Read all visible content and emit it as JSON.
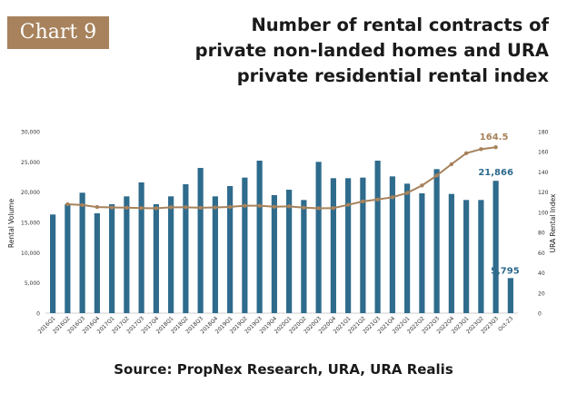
{
  "badge": "Chart 9",
  "title_lines": [
    "Number of rental contracts of",
    "private non-landed homes and URA",
    "private residential rental index"
  ],
  "source": "Source: PropNex Research, URA, URA Realis",
  "colors": {
    "bar": "#2e6b8c",
    "line": "#a7825c",
    "badge": "#a7825c"
  },
  "chart_data": {
    "type": "bar",
    "categories": [
      "2016Q1",
      "2016Q2",
      "2016Q3",
      "2016Q4",
      "2017Q1",
      "2017Q2",
      "2017Q3",
      "2017Q4",
      "2018Q1",
      "2018Q2",
      "2018Q3",
      "2018Q4",
      "2019Q1",
      "2019Q2",
      "2019Q3",
      "2019Q4",
      "2020Q1",
      "2020Q2",
      "2020Q3",
      "2020Q4",
      "2021Q1",
      "2021Q2",
      "2021Q3",
      "2021Q4",
      "2022Q1",
      "2022Q2",
      "2022Q3",
      "2022Q4",
      "2023Q1",
      "2023Q2",
      "2023Q3",
      "Oct-23"
    ],
    "series": [
      {
        "axis": "left",
        "kind": "bar",
        "values": [
          16300,
          18000,
          19900,
          16500,
          18000,
          19300,
          21600,
          18000,
          19300,
          21300,
          24000,
          19300,
          21000,
          22400,
          25200,
          19500,
          20400,
          18700,
          25000,
          22300,
          22300,
          22400,
          25200,
          22600,
          21400,
          19800,
          23800,
          19700,
          18700,
          18700,
          21866,
          5795
        ]
      },
      {
        "axis": "right",
        "kind": "line",
        "values": [
          null,
          108.0,
          107.2,
          105.2,
          104.8,
          104.6,
          104.2,
          104.0,
          105.0,
          105.0,
          104.5,
          104.8,
          105.3,
          106.5,
          106.5,
          105.5,
          105.9,
          104.6,
          104.0,
          104.2,
          107.4,
          110.8,
          112.7,
          114.9,
          119.2,
          126.6,
          136.4,
          147.7,
          158.6,
          162.6,
          164.5,
          null
        ]
      }
    ],
    "callouts": {
      "last_bar": "21,866",
      "oct_bar": "5,795",
      "last_index": "164.5"
    },
    "ylabel_left": "Rental Volume",
    "ylabel_right": "URA Rental Index",
    "ylim_left": [
      0,
      30000
    ],
    "ylim_right": [
      0,
      180
    ],
    "yticks_left": [
      "0",
      "5,000",
      "10,000",
      "15,000",
      "20,000",
      "25,000",
      "30,000"
    ],
    "yticks_right": [
      "0",
      "20",
      "40",
      "60",
      "80",
      "100",
      "120",
      "140",
      "160",
      "180"
    ]
  }
}
